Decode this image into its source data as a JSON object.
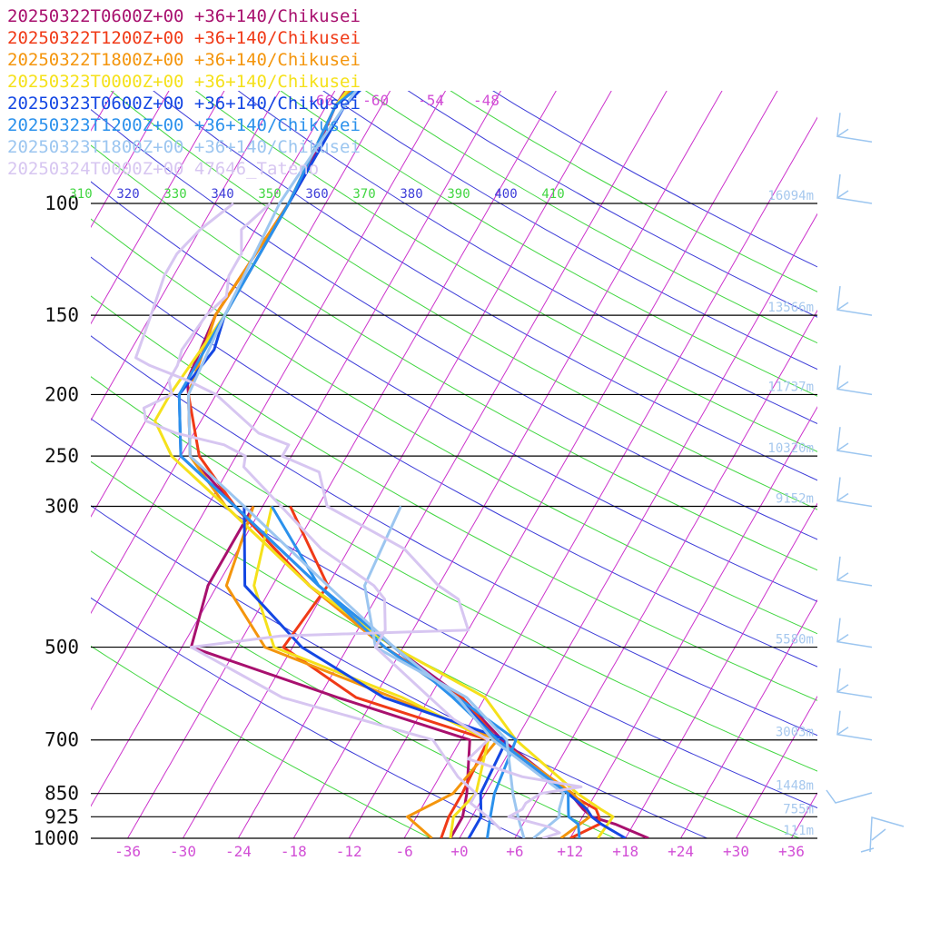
{
  "chart_data": {
    "type": "line",
    "subtype": "skew-T log-p sounding",
    "x_axis": {
      "tick_labels": [
        "-36",
        "-30",
        "-24",
        "-18",
        "-12",
        "-6",
        "+0",
        "+6",
        "+12",
        "+18",
        "+24",
        "+30",
        "+36"
      ],
      "tick_values": [
        -36,
        -30,
        -24,
        -18,
        -12,
        -6,
        0,
        6,
        12,
        18,
        24,
        30,
        36
      ],
      "range": [
        -40,
        40
      ]
    },
    "upper_temp_labels": [
      "-66",
      "-60",
      "-54",
      "-48"
    ],
    "upper_temp_values": [
      -66,
      -60,
      -54,
      -48
    ],
    "y_axis": {
      "pressure_levels": [
        100,
        150,
        200,
        250,
        300,
        500,
        700,
        850,
        925,
        1000
      ],
      "labels": [
        "100",
        "150",
        "200",
        "250",
        "300",
        "500",
        "700",
        "850",
        "925",
        "1000"
      ],
      "scale": "log",
      "range_hPa": [
        1000,
        100
      ]
    },
    "height_labels": [
      "16094m",
      "13566m",
      "11737m",
      "10320m",
      "9152m",
      "5580m",
      "3003m",
      "1448m",
      "755m",
      "111m"
    ],
    "height_levels": [
      100,
      150,
      200,
      250,
      300,
      500,
      700,
      850,
      925,
      1000
    ],
    "theta_labels": [
      "310",
      "320",
      "330",
      "340",
      "350",
      "360",
      "370",
      "380",
      "390",
      "400",
      "410"
    ],
    "theta_values": [
      310,
      320,
      330,
      340,
      350,
      360,
      370,
      380,
      390,
      400,
      410
    ],
    "grid": true,
    "legend_position": "top-left",
    "series": [
      {
        "name": "20250322T0600Z+00 +36+140/Chikusei",
        "color": "#a8106e",
        "temperature": [
          [
            1000,
            20.5
          ],
          [
            950,
            16
          ],
          [
            925,
            13
          ],
          [
            900,
            11.6
          ],
          [
            850,
            9.2
          ],
          [
            700,
            -1.5
          ],
          [
            600,
            -8.5
          ],
          [
            500,
            -19
          ],
          [
            400,
            -32
          ],
          [
            300,
            -45
          ],
          [
            250,
            -53
          ],
          [
            200,
            -57
          ],
          [
            190,
            -58
          ],
          [
            150,
            -59
          ],
          [
            100,
            -58
          ],
          [
            90,
            -58
          ],
          [
            70,
            -59
          ],
          [
            50,
            -58
          ],
          [
            46,
            -57
          ]
        ],
        "dewpoint": [
          [
            1000,
            -1
          ],
          [
            925,
            -1
          ],
          [
            850,
            -2
          ],
          [
            700,
            -5
          ],
          [
            600,
            -22
          ],
          [
            500,
            -41
          ],
          [
            400,
            -43
          ],
          [
            300,
            -43
          ]
        ]
      },
      {
        "name": "20250322T1200Z+00 +36+140/Chikusei",
        "color": "#f03a17",
        "temperature": [
          [
            1000,
            12
          ],
          [
            950,
            14.3
          ],
          [
            925,
            13.8
          ],
          [
            900,
            13
          ],
          [
            850,
            9
          ],
          [
            700,
            -2
          ],
          [
            600,
            -8.5
          ],
          [
            500,
            -20
          ],
          [
            400,
            -32
          ],
          [
            300,
            -45
          ],
          [
            250,
            -52
          ],
          [
            200,
            -57
          ],
          [
            150,
            -59
          ],
          [
            100,
            -58
          ],
          [
            70,
            -59
          ],
          [
            60,
            -56
          ],
          [
            50,
            -54
          ],
          [
            46,
            -53
          ]
        ],
        "dewpoint": [
          [
            1000,
            -2
          ],
          [
            925,
            -2.5
          ],
          [
            850,
            -2.5
          ],
          [
            700,
            -3
          ],
          [
            600,
            -20
          ],
          [
            500,
            -31
          ],
          [
            400,
            -30
          ],
          [
            300,
            -39
          ]
        ]
      },
      {
        "name": "20250322T1800Z+00 +36+140/Chikusei",
        "color": "#f4950c",
        "temperature": [
          [
            1000,
            11
          ],
          [
            925,
            12.8
          ],
          [
            900,
            12
          ],
          [
            850,
            9.5
          ],
          [
            700,
            -2
          ],
          [
            600,
            -9
          ],
          [
            500,
            -20
          ],
          [
            400,
            -32
          ],
          [
            300,
            -46
          ],
          [
            250,
            -53
          ],
          [
            200,
            -57
          ],
          [
            150,
            -59
          ],
          [
            100,
            -58
          ],
          [
            70,
            -59
          ],
          [
            50,
            -55
          ],
          [
            46,
            -53
          ]
        ],
        "dewpoint": [
          [
            1000,
            -3
          ],
          [
            925,
            -7
          ],
          [
            850,
            -3.5
          ],
          [
            700,
            -2
          ],
          [
            600,
            -16
          ],
          [
            500,
            -33
          ],
          [
            400,
            -41
          ],
          [
            300,
            -43
          ]
        ]
      },
      {
        "name": "20250323T0000Z+00 +36+140/Chikusei",
        "color": "#f5e11b",
        "temperature": [
          [
            1000,
            15
          ],
          [
            925,
            15.3
          ],
          [
            900,
            13.5
          ],
          [
            850,
            10
          ],
          [
            700,
            0
          ],
          [
            600,
            -6
          ],
          [
            500,
            -19
          ],
          [
            400,
            -32
          ],
          [
            300,
            -46
          ],
          [
            250,
            -55
          ],
          [
            220,
            -59
          ],
          [
            200,
            -59
          ],
          [
            150,
            -58
          ],
          [
            100,
            -58
          ],
          [
            70,
            -59
          ],
          [
            50,
            -57
          ],
          [
            46,
            -56
          ]
        ],
        "dewpoint": [
          [
            1000,
            -1
          ],
          [
            925,
            -2
          ],
          [
            850,
            -1
          ],
          [
            700,
            -3
          ],
          [
            600,
            -15
          ],
          [
            500,
            -32
          ],
          [
            400,
            -38
          ],
          [
            300,
            -41
          ]
        ]
      },
      {
        "name": "20250323T0600Z+00 +36+140/Chikusei",
        "color": "#1447e3",
        "temperature": [
          [
            1000,
            18
          ],
          [
            950,
            14.5
          ],
          [
            925,
            13
          ],
          [
            900,
            12
          ],
          [
            850,
            9
          ],
          [
            700,
            -2
          ],
          [
            600,
            -9
          ],
          [
            500,
            -19
          ],
          [
            400,
            -31
          ],
          [
            300,
            -45
          ],
          [
            250,
            -54
          ],
          [
            200,
            -58
          ],
          [
            170,
            -57
          ],
          [
            150,
            -58
          ],
          [
            100,
            -58
          ],
          [
            70,
            -58
          ],
          [
            60,
            -56
          ],
          [
            50,
            -57
          ],
          [
            46,
            -56
          ]
        ],
        "dewpoint": [
          [
            1000,
            1
          ],
          [
            925,
            1
          ],
          [
            850,
            -0.5
          ],
          [
            700,
            -1
          ],
          [
            600,
            -17
          ],
          [
            500,
            -29
          ],
          [
            400,
            -39
          ],
          [
            300,
            -44
          ]
        ]
      },
      {
        "name": "20250323T1200Z+00 +36+140/Chikusei",
        "color": "#2b91ec",
        "temperature": [
          [
            1000,
            13
          ],
          [
            950,
            12
          ],
          [
            925,
            10.5
          ],
          [
            900,
            10
          ],
          [
            850,
            9
          ],
          [
            700,
            -2
          ],
          [
            600,
            -9.5
          ],
          [
            500,
            -19
          ],
          [
            400,
            -31
          ],
          [
            300,
            -45
          ],
          [
            250,
            -54
          ],
          [
            200,
            -58
          ],
          [
            150,
            -58
          ],
          [
            100,
            -58
          ],
          [
            70,
            -59
          ],
          [
            55,
            -54
          ],
          [
            50,
            -57
          ],
          [
            46,
            -56
          ]
        ],
        "dewpoint": [
          [
            1000,
            3
          ],
          [
            925,
            2
          ],
          [
            850,
            1
          ],
          [
            700,
            0
          ],
          [
            600,
            -9
          ],
          [
            500,
            -20
          ],
          [
            400,
            -31
          ],
          [
            300,
            -41
          ]
        ]
      },
      {
        "name": "20250323T1800Z+00 +36+140/Chikusei",
        "color": "#9cc6f0",
        "temperature": [
          [
            1000,
            8
          ],
          [
            950,
            9
          ],
          [
            925,
            9.5
          ],
          [
            900,
            9
          ],
          [
            850,
            8.5
          ],
          [
            700,
            -2.5
          ],
          [
            600,
            -9
          ],
          [
            500,
            -19
          ],
          [
            400,
            -30
          ],
          [
            300,
            -44
          ],
          [
            250,
            -53
          ],
          [
            200,
            -57
          ],
          [
            150,
            -58
          ],
          [
            100,
            -59
          ],
          [
            70,
            -58
          ],
          [
            50,
            -56
          ],
          [
            46,
            -55
          ]
        ],
        "dewpoint": [
          [
            1000,
            7
          ],
          [
            925,
            5
          ],
          [
            850,
            3
          ],
          [
            700,
            -1
          ],
          [
            600,
            -8
          ],
          [
            500,
            -21
          ],
          [
            400,
            -26
          ],
          [
            300,
            -27
          ]
        ]
      },
      {
        "name": "20250324T0000Z+00 47646_Tateno",
        "color": "#d7c6f1",
        "temperature": [
          [
            1000,
            9
          ],
          [
            980,
            10.5
          ],
          [
            960,
            9
          ],
          [
            940,
            6.3
          ],
          [
            925,
            4
          ],
          [
            900,
            5
          ],
          [
            880,
            5
          ],
          [
            850,
            6
          ],
          [
            830,
            10
          ],
          [
            800,
            3
          ],
          [
            750,
            -4
          ],
          [
            700,
            -3
          ],
          [
            650,
            -8
          ],
          [
            600,
            -12
          ],
          [
            500,
            -21
          ],
          [
            470,
            -21
          ],
          [
            420,
            -23
          ],
          [
            400,
            -25
          ],
          [
            350,
            -33
          ],
          [
            300,
            -40
          ],
          [
            260,
            -46.5
          ],
          [
            250,
            -47
          ],
          [
            240,
            -50
          ],
          [
            230,
            -56
          ],
          [
            220,
            -60
          ],
          [
            210,
            -61
          ],
          [
            200,
            -58.8
          ],
          [
            190,
            -60
          ],
          [
            180,
            -60
          ],
          [
            170,
            -60.5
          ],
          [
            150,
            -60
          ],
          [
            140,
            -59
          ],
          [
            130,
            -60
          ],
          [
            120,
            -60
          ],
          [
            110,
            -61.5
          ],
          [
            100,
            -60
          ]
        ],
        "dewpoint": [
          [
            970,
            4
          ],
          [
            930,
            2
          ],
          [
            880,
            -1
          ],
          [
            850,
            -1
          ],
          [
            800,
            -4
          ],
          [
            700,
            -9
          ],
          [
            600,
            -28
          ],
          [
            500,
            -41
          ],
          [
            480,
            -32
          ],
          [
            470,
            -12
          ],
          [
            420,
            -15
          ],
          [
            400,
            -18
          ],
          [
            350,
            -24
          ],
          [
            300,
            -35
          ],
          [
            265,
            -38
          ],
          [
            250,
            -43
          ],
          [
            240,
            -43
          ],
          [
            230,
            -47
          ],
          [
            200,
            -54
          ],
          [
            190,
            -58
          ],
          [
            180,
            -63
          ],
          [
            175,
            -65
          ],
          [
            150,
            -66
          ],
          [
            130,
            -67
          ],
          [
            120,
            -67
          ],
          [
            110,
            -66
          ],
          [
            100,
            -64
          ]
        ]
      }
    ]
  }
}
